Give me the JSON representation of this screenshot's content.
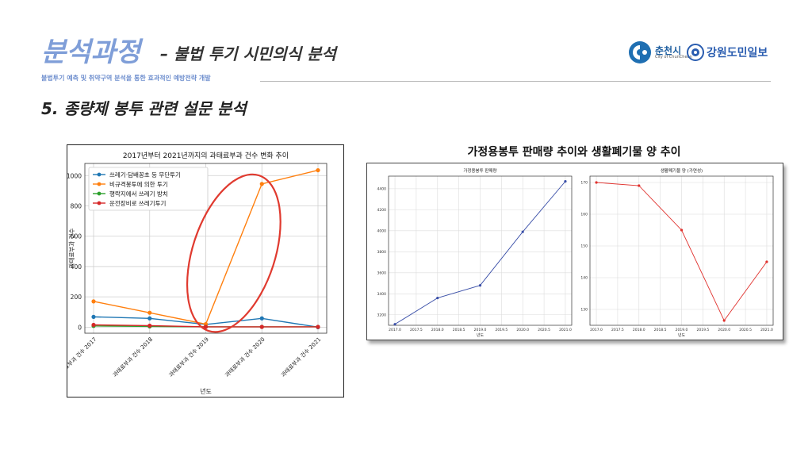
{
  "header": {
    "title_main": "분석과정",
    "title_sub": "– 불법 투기 시민의식 분석",
    "subtitle": "불법투기 예측 및 취약구역 분석을 통한 효과적인 예방전략 개발",
    "section_title": "5. 종량제 봉투 관련 설문 분석"
  },
  "logos": {
    "chuncheon_name": "춘천시",
    "chuncheon_en": "City of ChunCheon",
    "gangwon_name": "강원도민일보"
  },
  "colors": {
    "accent": "#7f9ed8",
    "ellipse": "#e03a2f"
  },
  "chart_data": [
    {
      "type": "line",
      "title": "2017년부터 2021년까지의 과태료부과 건수 변화 추이",
      "xlabel": "년도",
      "ylabel": "과태료부과 건수",
      "categories": [
        "과태료부과 건수 2017",
        "과태료부과 건수 2018",
        "과태료부과 건수 2019",
        "과태료부과 건수 2020",
        "과태료부과 건수 2021"
      ],
      "ylim": [
        -40,
        1080
      ],
      "yticks": [
        0,
        200,
        400,
        600,
        800,
        1000
      ],
      "grid": true,
      "legend": "top-left",
      "series": [
        {
          "name": "쓰레기·담배꽁초 등 무단투기",
          "color": "#1f77b4",
          "values": [
            68,
            58,
            18,
            58,
            0
          ]
        },
        {
          "name": "비규격봉투에 의한 투기",
          "color": "#ff7f0e",
          "values": [
            170,
            95,
            20,
            945,
            1035
          ]
        },
        {
          "name": "행락지에서 쓰레기 방치",
          "color": "#2ca02c",
          "values": [
            8,
            5,
            2,
            2,
            2
          ]
        },
        {
          "name": "운전장비로 쓰레기투기",
          "color": "#d62728",
          "values": [
            15,
            10,
            2,
            2,
            2
          ]
        }
      ],
      "annotation": "red ellipse highlighting 2019–2020 jump"
    },
    {
      "type": "line",
      "title": "가정용봉투 판매량",
      "xlabel": "년도",
      "x": [
        2017,
        2018,
        2019,
        2020,
        2021
      ],
      "xticks": [
        "2017.0",
        "2017.5",
        "2018.0",
        "2018.5",
        "2019.0",
        "2019.5",
        "2020.0",
        "2020.5",
        "2021.0"
      ],
      "xlim": [
        2016.85,
        2021.15
      ],
      "ylim": [
        3100,
        4520
      ],
      "yticks": [
        3200,
        3400,
        3600,
        3800,
        4000,
        4200,
        4400
      ],
      "grid": true,
      "series": [
        {
          "color": "#3a4fa8",
          "values": [
            3110,
            3360,
            3480,
            3990,
            4470
          ]
        }
      ]
    },
    {
      "type": "line",
      "title": "생활폐기물 양 (가연성)",
      "xlabel": "년도",
      "x": [
        2017,
        2018,
        2019,
        2020,
        2021
      ],
      "xticks": [
        "2017.0",
        "2017.5",
        "2018.0",
        "2018.5",
        "2019.0",
        "2019.5",
        "2020.0",
        "2020.5",
        "2021.0"
      ],
      "xlim": [
        2016.85,
        2021.15
      ],
      "ylim": [
        125,
        172
      ],
      "yticks": [
        130,
        140,
        150,
        160,
        170
      ],
      "grid": true,
      "series": [
        {
          "color": "#e0312d",
          "values": [
            170,
            169,
            155,
            126.5,
            145
          ]
        }
      ]
    }
  ],
  "right_figure_title": "가정용봉투 판매량 추이와 생활폐기물 양 추이"
}
